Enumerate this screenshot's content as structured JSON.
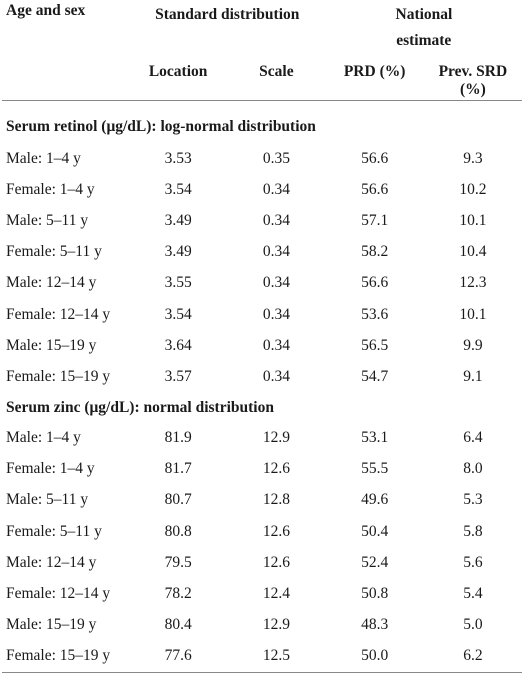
{
  "header": {
    "col_age_sex": "Age and sex",
    "group_standard": "Standard distribution",
    "group_national": "National estimate",
    "sub_location": "Location",
    "sub_scale": "Scale",
    "sub_prd": "PRD (%)",
    "sub_prev_srd": "Prev. SRD (%)"
  },
  "sections": [
    {
      "title": "Serum retinol (μg/dL): log-normal distribution",
      "rows": [
        [
          "Male: 1–4 y",
          "3.53",
          "0.35",
          "56.6",
          "9.3"
        ],
        [
          "Female: 1–4 y",
          "3.54",
          "0.34",
          "56.6",
          "10.2"
        ],
        [
          "Male: 5–11 y",
          "3.49",
          "0.34",
          "57.1",
          "10.1"
        ],
        [
          "Female: 5–11 y",
          "3.49",
          "0.34",
          "58.2",
          "10.4"
        ],
        [
          "Male: 12–14 y",
          "3.55",
          "0.34",
          "56.6",
          "12.3"
        ],
        [
          "Female: 12–14 y",
          "3.54",
          "0.34",
          "53.6",
          "10.1"
        ],
        [
          "Male: 15–19 y",
          "3.64",
          "0.34",
          "56.5",
          "9.9"
        ],
        [
          "Female: 15–19 y",
          "3.57",
          "0.34",
          "54.7",
          "9.1"
        ]
      ]
    },
    {
      "title": "Serum zinc (μg/dL): normal distribution",
      "rows": [
        [
          "Male: 1–4 y",
          "81.9",
          "12.9",
          "53.1",
          "6.4"
        ],
        [
          "Female: 1–4 y",
          "81.7",
          "12.6",
          "55.5",
          "8.0"
        ],
        [
          "Male: 5–11 y",
          "80.7",
          "12.8",
          "49.6",
          "5.3"
        ],
        [
          "Female: 5–11 y",
          "80.8",
          "12.6",
          "50.4",
          "5.8"
        ],
        [
          "Male: 12–14 y",
          "79.5",
          "12.6",
          "52.4",
          "5.6"
        ],
        [
          "Female: 12–14 y",
          "78.2",
          "12.4",
          "50.8",
          "5.4"
        ],
        [
          "Male: 15–19 y",
          "80.4",
          "12.9",
          "48.3",
          "5.0"
        ],
        [
          "Female: 15–19 y",
          "77.6",
          "12.5",
          "50.0",
          "6.2"
        ]
      ]
    }
  ]
}
